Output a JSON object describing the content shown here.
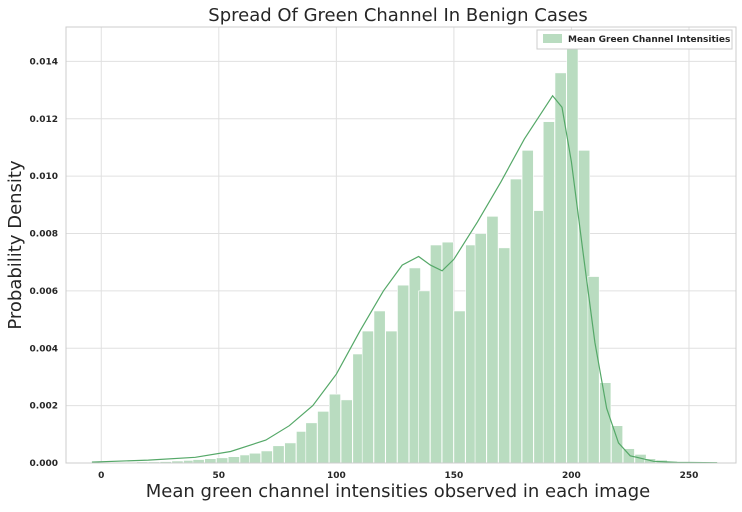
{
  "chart_data": {
    "type": "bar",
    "title": "Spread Of Green Channel In Benign Cases",
    "xlabel": "Mean green channel intensities observed in each image",
    "ylabel": "Probability Density",
    "xlim": [
      -15,
      270
    ],
    "ylim": [
      0,
      0.0152
    ],
    "xticks": [
      0,
      50,
      100,
      150,
      200,
      250
    ],
    "xtick_labels": [
      "0",
      "50",
      "100",
      "150",
      "200",
      "250"
    ],
    "yticks": [
      0,
      0.002,
      0.004,
      0.006,
      0.008,
      0.01,
      0.012,
      0.014
    ],
    "ytick_labels": [
      "0.000",
      "0.002",
      "0.004",
      "0.006",
      "0.008",
      "0.010",
      "0.012",
      "0.014"
    ],
    "grid": true,
    "legend_position": "top-right",
    "bin_width": 4.8,
    "series": [
      {
        "name": "Mean Green Channel Intensities",
        "color": "#55a868",
        "bar_color": "#b9dcc0",
        "bin_starts": [
          -4,
          1,
          6,
          10,
          15,
          20,
          25,
          30,
          35,
          39,
          44,
          49,
          54,
          59,
          63,
          68,
          73,
          78,
          83,
          87,
          92,
          97,
          102,
          107,
          111,
          116,
          121,
          126,
          131,
          135,
          140,
          145,
          150,
          155,
          159,
          164,
          169,
          174,
          179,
          184,
          188,
          193,
          198,
          203,
          207,
          212,
          217,
          222,
          227,
          231,
          236,
          241,
          246,
          251,
          255
        ],
        "values": [
          2e-05,
          2e-05,
          2e-05,
          2e-05,
          4e-05,
          4e-05,
          5e-05,
          7e-05,
          9e-05,
          0.00012,
          0.00015,
          0.00018,
          0.00022,
          0.00028,
          0.00034,
          0.00042,
          0.0006,
          0.0007,
          0.0011,
          0.0014,
          0.0018,
          0.0024,
          0.0022,
          0.0038,
          0.0046,
          0.0053,
          0.0046,
          0.0062,
          0.0068,
          0.006,
          0.0076,
          0.0077,
          0.0053,
          0.0076,
          0.008,
          0.0086,
          0.0075,
          0.0099,
          0.0109,
          0.0088,
          0.0119,
          0.0136,
          0.0145,
          0.0109,
          0.0065,
          0.0028,
          0.0013,
          0.0005,
          0.0003,
          0.00015,
          0.0001,
          4e-05,
          2e-05,
          1e-05,
          1e-05
        ]
      }
    ],
    "kde": {
      "x": [
        -4,
        20,
        40,
        55,
        70,
        80,
        90,
        100,
        110,
        120,
        128,
        135,
        140,
        145,
        150,
        160,
        170,
        180,
        188,
        192,
        196,
        200,
        205,
        210,
        215,
        220,
        225,
        235,
        245,
        262
      ],
      "y": [
        3e-05,
        0.0001,
        0.0002,
        0.0004,
        0.0008,
        0.0013,
        0.002,
        0.0031,
        0.0046,
        0.006,
        0.0069,
        0.0072,
        0.0069,
        0.0067,
        0.0071,
        0.0084,
        0.0098,
        0.0113,
        0.0123,
        0.0128,
        0.0124,
        0.0105,
        0.0073,
        0.0042,
        0.0019,
        0.0007,
        0.00025,
        6e-05,
        2e-05,
        1e-05
      ]
    }
  }
}
